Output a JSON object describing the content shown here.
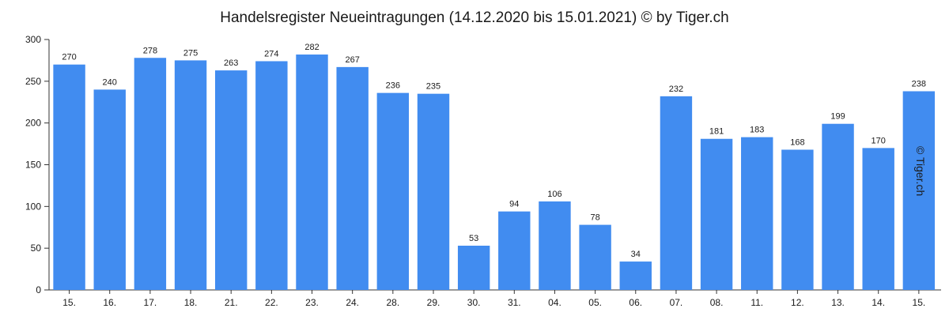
{
  "chart_data": {
    "type": "bar",
    "title": "Handelsregister Neueintragungen (14.12.2020 bis 15.01.2021) © by Tiger.ch",
    "watermark": "© Tiger.ch",
    "xlabel": "",
    "ylabel": "",
    "ylim": [
      0,
      300
    ],
    "yticks": [
      0,
      50,
      100,
      150,
      200,
      250,
      300
    ],
    "grid": false,
    "bar_color": "#418cf0",
    "categories": [
      "15.",
      "16.",
      "17.",
      "18.",
      "21.",
      "22.",
      "23.",
      "24.",
      "28.",
      "29.",
      "30.",
      "31.",
      "04.",
      "05.",
      "06.",
      "07.",
      "08.",
      "11.",
      "12.",
      "13.",
      "14.",
      "15."
    ],
    "values": [
      270,
      240,
      278,
      275,
      263,
      274,
      282,
      267,
      236,
      235,
      53,
      94,
      106,
      78,
      34,
      232,
      181,
      183,
      168,
      199,
      170,
      238
    ]
  }
}
